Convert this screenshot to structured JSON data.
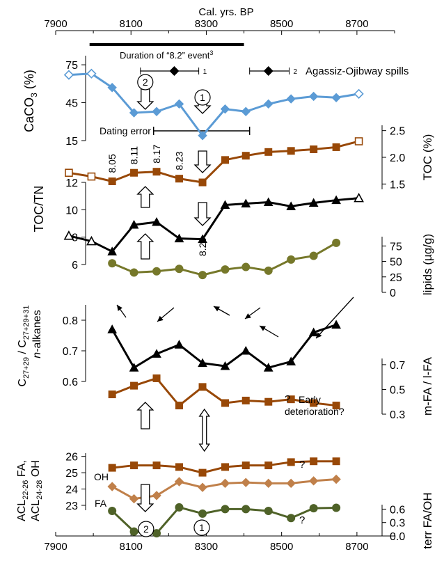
{
  "chart_data": {
    "type": "line",
    "title": "",
    "x_axis": {
      "label": "Cal. yrs. BP",
      "range": [
        7900,
        8800
      ],
      "ticks": [
        "7900",
        "8100",
        "8300",
        "8500",
        "8700"
      ]
    },
    "annotations": {
      "event_label": "Duration of “8.2” event",
      "event_sup": "3",
      "event_range": [
        7990,
        8400
      ],
      "spill_label": "Agassiz-Ojibway spills",
      "spill1": {
        "x": 8215,
        "xmin": 8125,
        "xmax": 8280,
        "label": "1"
      },
      "spill2": {
        "x": 8465,
        "xmin": 8415,
        "xmax": 8520,
        "label": "2"
      },
      "dating_error_label": "Dating error",
      "dating_error_range": [
        8160,
        8415
      ],
      "toc_ages": [
        {
          "x": 8050,
          "text": "8.05"
        },
        {
          "x": 8108,
          "text": "8.11"
        },
        {
          "x": 8168,
          "text": "8.17"
        },
        {
          "x": 8228,
          "text": "8.23"
        },
        {
          "x": 8290,
          "text": "8.29"
        }
      ],
      "circle_1": "1",
      "circle_2": "2",
      "question_mark": "?",
      "early_label_1": "Early",
      "early_label_2": "deterioration?"
    },
    "panels": [
      {
        "id": "caco3",
        "ylabel_main": "CaCO",
        "ylabel_sub": "3",
        "ylabel_unit": " (%)",
        "yrange": [
          15,
          80
        ],
        "ticks": [
          15,
          45,
          75
        ],
        "series": [
          {
            "color": "#5b9bd5",
            "marker": "diamond",
            "x": [
              7935,
              7995,
              8050,
              8108,
              8168,
              8228,
              8290,
              8350,
              8405,
              8465,
              8525,
              8585,
              8645,
              8705
            ],
            "y": [
              67,
              68,
              57,
              37,
              38,
              44,
              19,
              40,
              38,
              44,
              48,
              50,
              49,
              52
            ],
            "open": [
              true,
              true,
              false,
              false,
              false,
              false,
              false,
              false,
              false,
              false,
              false,
              false,
              false,
              true
            ]
          }
        ]
      },
      {
        "id": "toc",
        "ylabel": "TOC (%)",
        "yrange": [
          1.4,
          2.6
        ],
        "ticks": [
          "1.5",
          "2.0",
          "2.5"
        ],
        "series": [
          {
            "color": "#984807",
            "marker": "square",
            "x": [
              7935,
              7995,
              8050,
              8108,
              8168,
              8228,
              8290,
              8350,
              8405,
              8465,
              8525,
              8585,
              8645,
              8705
            ],
            "y": [
              1.71,
              1.64,
              1.55,
              1.71,
              1.73,
              1.6,
              1.53,
              1.95,
              2.03,
              2.1,
              2.12,
              2.15,
              2.19,
              2.3
            ],
            "open": [
              true,
              true,
              false,
              false,
              false,
              false,
              false,
              false,
              false,
              false,
              false,
              false,
              false,
              true
            ]
          }
        ]
      },
      {
        "id": "toctn",
        "ylabel": "TOC/TN",
        "yrange": [
          6,
          12
        ],
        "ticks": [
          "6",
          "8",
          "10",
          "12"
        ],
        "series": [
          {
            "color": "#000000",
            "marker": "triangle",
            "x": [
              7935,
              7995,
              8050,
              8108,
              8168,
              8228,
              8290,
              8350,
              8405,
              8465,
              8525,
              8585,
              8645,
              8705
            ],
            "y": [
              8.1,
              7.7,
              6.95,
              8.9,
              9.1,
              7.9,
              7.85,
              10.35,
              10.45,
              10.55,
              10.25,
              10.5,
              10.7,
              10.85
            ],
            "open": [
              true,
              true,
              false,
              false,
              false,
              false,
              false,
              false,
              false,
              false,
              false,
              false,
              false,
              true
            ]
          }
        ]
      },
      {
        "id": "lipids",
        "ylabel": "lipids (µg/g)",
        "yrange": [
          0,
          90
        ],
        "ticks": [
          "0",
          "25",
          "50",
          "75"
        ],
        "series": [
          {
            "color": "#76782a",
            "marker": "circle",
            "x": [
              8050,
              8108,
              8168,
              8228,
              8290,
              8350,
              8405,
              8465,
              8525,
              8585,
              8645
            ],
            "y": [
              47,
              32,
              34,
              38,
              28,
              37,
              41,
              35,
              53,
              59,
              80
            ],
            "open": []
          }
        ]
      },
      {
        "id": "alkanes",
        "ylabel_line1_main": "C",
        "ylabel_line1_sub": "27+29",
        "ylabel_line1_mid": " / C",
        "ylabel_line1_sub2": "27+29+31",
        "ylabel_line2_italic": "n",
        "ylabel_line2_rest": "-alkanes",
        "yrange": [
          0.6,
          0.85
        ],
        "ticks": [
          "0.6",
          "0.7",
          "0.8"
        ],
        "series": [
          {
            "color": "#000000",
            "marker": "triangle",
            "x": [
              8050,
              8108,
              8168,
              8228,
              8290,
              8350,
              8405,
              8465,
              8525,
              8585,
              8645
            ],
            "y": [
              0.77,
              0.645,
              0.69,
              0.72,
              0.66,
              0.65,
              0.7,
              0.645,
              0.665,
              0.76,
              0.785
            ],
            "open": []
          }
        ]
      },
      {
        "id": "mfa",
        "ylabel": "m-FA / l-FA",
        "yrange": [
          0.3,
          0.75
        ],
        "ticks": [
          "0.3",
          "0.5",
          "0.7"
        ],
        "series": [
          {
            "color": "#984807",
            "marker": "square",
            "x": [
              8050,
              8108,
              8168,
              8228,
              8290,
              8350,
              8405,
              8465,
              8525,
              8585,
              8645
            ],
            "y": [
              0.46,
              0.53,
              0.59,
              0.37,
              0.52,
              0.39,
              0.41,
              0.4,
              0.42,
              0.39,
              0.37
            ],
            "open": []
          }
        ]
      },
      {
        "id": "acl",
        "ylabel_line1_a": "ACL",
        "ylabel_line1_sub": "22-26",
        "ylabel_line1_b": " FA,",
        "ylabel_line2_a": "ACL",
        "ylabel_line2_sub": "24-28",
        "ylabel_line2_b": " OH",
        "yrange": [
          22.7,
          26.2
        ],
        "ticks": [
          "23",
          "24",
          "25",
          "26"
        ],
        "series": [
          {
            "name": "OH",
            "color": "#984807",
            "marker": "square",
            "x": [
              8050,
              8108,
              8168,
              8228,
              8290,
              8350,
              8405,
              8465,
              8525,
              8585,
              8645
            ],
            "y": [
              25.3,
              25.45,
              25.45,
              25.35,
              25.0,
              25.35,
              25.45,
              25.45,
              25.65,
              25.7,
              25.7
            ],
            "open": []
          },
          {
            "name": "FA",
            "color": "#c0804a",
            "marker": "diamond",
            "x": [
              8050,
              8108,
              8168,
              8228,
              8290,
              8350,
              8405,
              8465,
              8525,
              8585,
              8645
            ],
            "y": [
              24.15,
              23.4,
              23.6,
              24.45,
              24.1,
              24.35,
              24.4,
              24.35,
              24.35,
              24.5,
              24.6
            ],
            "open": []
          }
        ]
      },
      {
        "id": "terr",
        "ylabel": "terr FA/OH",
        "yrange": [
          0,
          0.7
        ],
        "ticks": [
          "0.0",
          "0.3",
          "0.6"
        ],
        "series": [
          {
            "color": "#4f6228",
            "marker": "circle",
            "x": [
              8050,
              8108,
              8168,
              8228,
              8290,
              8350,
              8405,
              8465,
              8525,
              8585,
              8645
            ],
            "y": [
              0.56,
              0.1,
              0.06,
              0.64,
              0.5,
              0.6,
              0.6,
              0.56,
              0.4,
              0.62,
              0.63
            ],
            "open": []
          }
        ]
      }
    ]
  }
}
